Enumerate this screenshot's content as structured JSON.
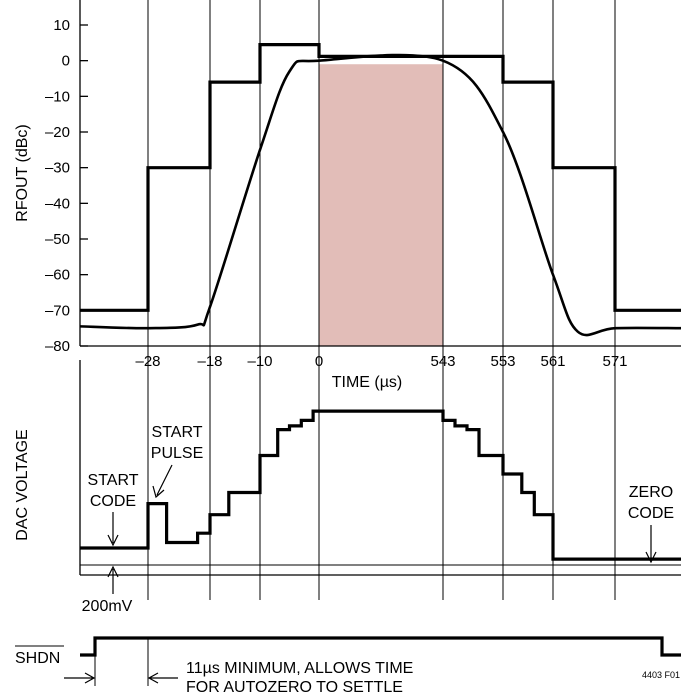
{
  "chart_data": [
    {
      "type": "line",
      "title": "",
      "ylabel": "RFOUT (dBc)",
      "xlabel": "TIME (µs)",
      "ylim": [
        -80,
        10
      ],
      "yticks": [
        10,
        0,
        -10,
        -20,
        -30,
        -40,
        -50,
        -60,
        -70,
        -80
      ],
      "ytick_labels": [
        "10",
        "0",
        "–10",
        "–20",
        "–30",
        "–40",
        "–50",
        "–60",
        "–70",
        "–80"
      ],
      "xtick_labels": [
        "–28",
        "–18",
        "–10",
        "0",
        "543",
        "553",
        "561",
        "571"
      ],
      "grid": "vertical lines at tick times",
      "highlight": {
        "from": "0",
        "to": "543",
        "color": "#e2bdb8"
      },
      "series": [
        {
          "role": "spectral mask (stepped limit)",
          "points": [
            [
              "start",
              -70
            ],
            [
              "–28",
              -70
            ],
            [
              "–28",
              -30
            ],
            [
              "–18",
              -30
            ],
            [
              "–18",
              -6
            ],
            [
              "–10",
              -6
            ],
            [
              "–10",
              4.5
            ],
            [
              "0",
              4.5
            ],
            [
              "0",
              1.2
            ],
            [
              "553",
              1.2
            ],
            [
              "553",
              -6
            ],
            [
              "561",
              -6
            ],
            [
              "561",
              -30
            ],
            [
              "571",
              -30
            ],
            [
              "571",
              -70
            ],
            [
              "end",
              -70
            ]
          ]
        },
        {
          "role": "RF output response",
          "points": [
            [
              "start",
              -74.5
            ],
            [
              "–28",
              -75
            ],
            [
              "–20",
              -74
            ],
            [
              "–18",
              -69
            ],
            [
              "–10",
              -25
            ],
            [
              "–5",
              -3
            ],
            [
              "0",
              0
            ],
            [
              "543",
              0
            ],
            [
              "553",
              -20
            ],
            [
              "561",
              -60
            ],
            [
              "565",
              -76
            ],
            [
              "571",
              -75
            ],
            [
              "end",
              -75
            ]
          ]
        }
      ]
    },
    {
      "type": "line",
      "title": "",
      "ylabel": "DAC VOLTAGE",
      "xtick_positions_shared_with_upper_plot": true,
      "steps_relative_level": [
        [
          "start",
          0.0
        ],
        [
          "–28",
          0.0
        ],
        [
          "–28",
          0.24
        ],
        [
          "–25",
          0.24
        ],
        [
          "–25",
          0.03
        ],
        [
          "–20",
          0.03
        ],
        [
          "–20",
          0.08
        ],
        [
          "–18",
          0.08
        ],
        [
          "–18",
          0.18
        ],
        [
          "–15",
          0.18
        ],
        [
          "–15",
          0.3
        ],
        [
          "–10",
          0.3
        ],
        [
          "–10",
          0.5
        ],
        [
          "–7",
          0.5
        ],
        [
          "–7",
          0.64
        ],
        [
          "–5",
          0.64
        ],
        [
          "–5",
          0.66
        ],
        [
          "–3",
          0.66
        ],
        [
          "–3",
          0.69
        ],
        [
          "–1",
          0.69
        ],
        [
          "–1",
          0.74
        ],
        [
          "543",
          0.74
        ],
        [
          "543",
          0.69
        ],
        [
          "545",
          0.69
        ],
        [
          "545",
          0.66
        ],
        [
          "547",
          0.66
        ],
        [
          "547",
          0.64
        ],
        [
          "549",
          0.64
        ],
        [
          "549",
          0.5
        ],
        [
          "553",
          0.5
        ],
        [
          "553",
          0.4
        ],
        [
          "556",
          0.4
        ],
        [
          "556",
          0.3
        ],
        [
          "558",
          0.3
        ],
        [
          "558",
          0.18
        ],
        [
          "561",
          0.18
        ],
        [
          "561",
          -0.06
        ],
        [
          "end",
          -0.06
        ]
      ],
      "annotations": [
        "START CODE",
        "START PULSE",
        "ZERO CODE",
        "200mV"
      ]
    },
    {
      "type": "line",
      "title": "",
      "ylabel": "SHDN",
      "signal": "SHDN logic level",
      "annotation": [
        "11µs MINIMUM, ALLOWS TIME",
        "FOR AUTOZERO TO SETTLE"
      ]
    }
  ],
  "figure_id": "4403 F01",
  "labels": {
    "start_code": [
      "START",
      "CODE"
    ],
    "start_pulse": [
      "START",
      "PULSE"
    ],
    "zero_code": [
      "ZERO",
      "CODE"
    ],
    "v200": "200mV",
    "shdn": "SHDN",
    "note_line1": "11µs MINIMUM, ALLOWS TIME",
    "note_line2": "FOR AUTOZERO TO SETTLE"
  }
}
